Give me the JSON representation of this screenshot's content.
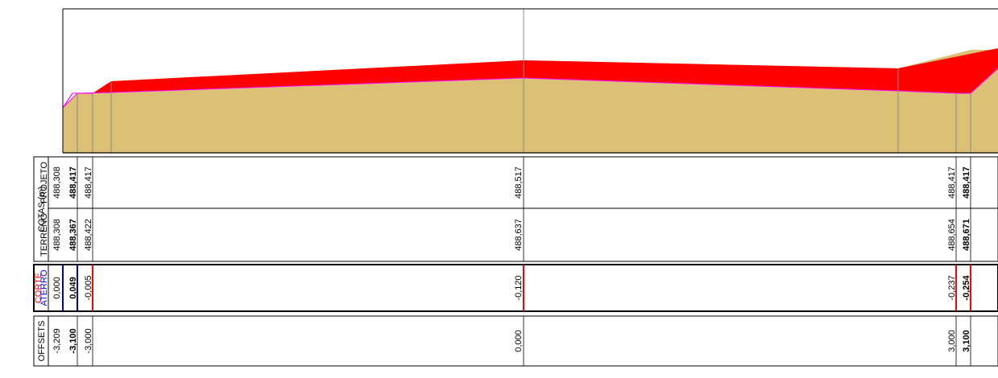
{
  "colors": {
    "cut": "#ff0000",
    "ground": "#dcc075",
    "pink": "#ff00ff",
    "blue": "#0000cc",
    "red_label": "#ff0000",
    "blue_label": "#0000ff",
    "frame": "#000000",
    "vline": "#888888"
  },
  "labels": {
    "cotas": "COTAS (m)",
    "terreno": "TERRENO",
    "projeto": "PROJETO",
    "corte": "CORTE",
    "aterro": "ATERRO",
    "offsets": "OFFSETS"
  },
  "stations": [
    {
      "projeto": "488,308",
      "terreno": "488,308",
      "diff": "0,000",
      "offset": "-3,209",
      "bold": false,
      "diff_color": "black"
    },
    {
      "projeto": "488,417",
      "terreno": "488,367",
      "diff": "0,049",
      "offset": "-3,100",
      "bold": true,
      "diff_color": "blue"
    },
    {
      "projeto": "488,417",
      "terreno": "488,422",
      "diff": "-0,005",
      "offset": "-3,000",
      "bold": false,
      "diff_color": "red"
    },
    {
      "projeto": "488,517",
      "terreno": "488,637",
      "diff": "-0,120",
      "offset": "0,000",
      "bold": false,
      "diff_color": "red"
    },
    {
      "projeto": "488,417",
      "terreno": "488,654",
      "diff": "-0,237",
      "offset": "3,000",
      "bold": false,
      "diff_color": "red"
    },
    {
      "projeto": "488,417",
      "terreno": "488,671",
      "diff": "-0,254",
      "offset": "3,100",
      "bold": true,
      "diff_color": "red"
    }
  ]
}
